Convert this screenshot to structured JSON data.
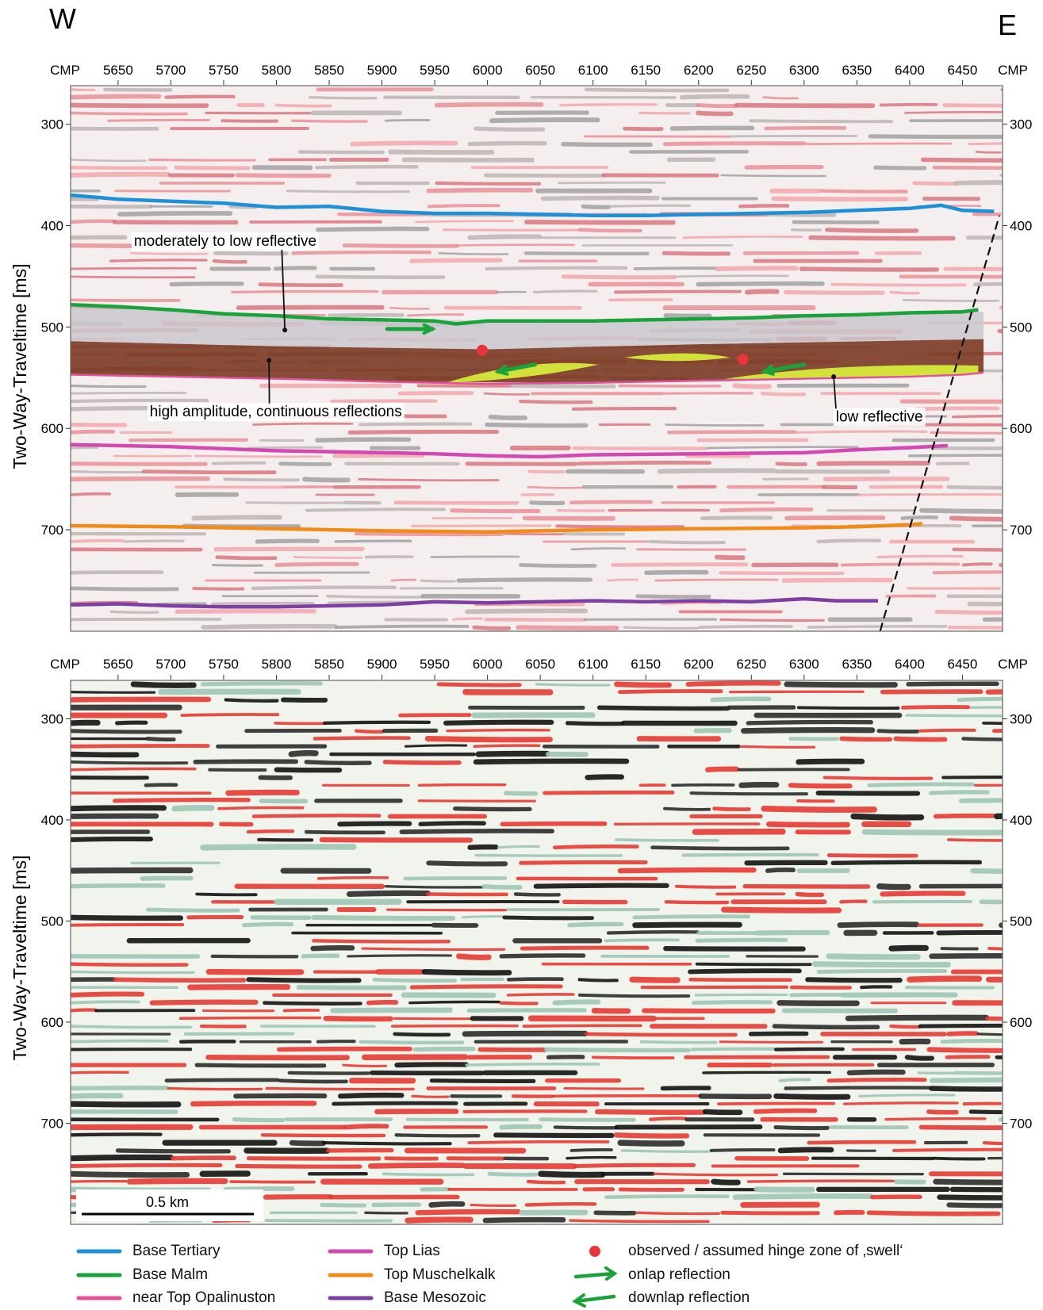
{
  "directions": {
    "west": "W",
    "east": "E"
  },
  "cmp_axis": {
    "end_label": "CMP",
    "ticks": [
      5650,
      5700,
      5750,
      5800,
      5850,
      5900,
      5950,
      6000,
      6050,
      6100,
      6150,
      6200,
      6250,
      6300,
      6350,
      6400,
      6450
    ],
    "range": [
      5605,
      6488
    ]
  },
  "time_axis": {
    "label": "Two-Way-Traveltime [ms]",
    "ticks": [
      300,
      400,
      500,
      600,
      700
    ],
    "range_ms": [
      262,
      800
    ]
  },
  "upper_panel": {
    "horizons": [
      {
        "key": "base_tertiary",
        "color": "#1e90d8",
        "points": [
          [
            5605,
            370
          ],
          [
            5650,
            374
          ],
          [
            5700,
            376
          ],
          [
            5750,
            378
          ],
          [
            5800,
            382
          ],
          [
            5850,
            381
          ],
          [
            5900,
            386
          ],
          [
            5950,
            388
          ],
          [
            6000,
            388
          ],
          [
            6050,
            389
          ],
          [
            6100,
            390
          ],
          [
            6150,
            390
          ],
          [
            6200,
            389
          ],
          [
            6250,
            388
          ],
          [
            6300,
            387
          ],
          [
            6350,
            385
          ],
          [
            6400,
            383
          ],
          [
            6430,
            380
          ],
          [
            6450,
            385
          ],
          [
            6480,
            386
          ]
        ]
      },
      {
        "key": "base_malm",
        "color": "#1aa33a",
        "points": [
          [
            5605,
            478
          ],
          [
            5650,
            480
          ],
          [
            5700,
            483
          ],
          [
            5750,
            487
          ],
          [
            5800,
            489
          ],
          [
            5850,
            492
          ],
          [
            5900,
            493
          ],
          [
            5950,
            494
          ],
          [
            5970,
            497
          ],
          [
            6000,
            494
          ],
          [
            6050,
            494
          ],
          [
            6100,
            494
          ],
          [
            6150,
            493
          ],
          [
            6200,
            492
          ],
          [
            6250,
            491
          ],
          [
            6300,
            489
          ],
          [
            6350,
            488
          ],
          [
            6400,
            486
          ],
          [
            6450,
            485
          ],
          [
            6465,
            483
          ]
        ]
      },
      {
        "key": "near_top_opalinuston",
        "color": "#e0529a",
        "points": [
          [
            5605,
            547
          ],
          [
            5700,
            549
          ],
          [
            5800,
            551
          ],
          [
            5900,
            554
          ],
          [
            6000,
            556
          ],
          [
            6100,
            555
          ],
          [
            6200,
            553
          ],
          [
            6300,
            551
          ],
          [
            6400,
            549
          ],
          [
            6450,
            547
          ],
          [
            6470,
            545
          ]
        ]
      },
      {
        "key": "top_lias",
        "color": "#d448b2",
        "points": [
          [
            5605,
            616
          ],
          [
            5700,
            618
          ],
          [
            5800,
            622
          ],
          [
            5900,
            624
          ],
          [
            5950,
            625
          ],
          [
            6000,
            627
          ],
          [
            6050,
            628
          ],
          [
            6100,
            626
          ],
          [
            6200,
            625
          ],
          [
            6300,
            624
          ],
          [
            6350,
            621
          ],
          [
            6400,
            619
          ],
          [
            6436,
            617
          ]
        ]
      },
      {
        "key": "top_muschelkalk",
        "color": "#f28a1a",
        "points": [
          [
            5605,
            696
          ],
          [
            5700,
            697
          ],
          [
            5800,
            699
          ],
          [
            5900,
            701
          ],
          [
            6000,
            702
          ],
          [
            6100,
            700
          ],
          [
            6200,
            699
          ],
          [
            6300,
            698
          ],
          [
            6350,
            697
          ],
          [
            6400,
            695
          ],
          [
            6412,
            694
          ]
        ]
      },
      {
        "key": "base_mesozoic",
        "color": "#7d3fa3",
        "points": [
          [
            5605,
            774
          ],
          [
            5650,
            773
          ],
          [
            5700,
            775
          ],
          [
            5750,
            776
          ],
          [
            5800,
            776
          ],
          [
            5850,
            775
          ],
          [
            5900,
            774
          ],
          [
            5950,
            771
          ],
          [
            6000,
            772
          ],
          [
            6050,
            771
          ],
          [
            6100,
            770
          ],
          [
            6150,
            771
          ],
          [
            6200,
            770
          ],
          [
            6250,
            771
          ],
          [
            6300,
            768
          ],
          [
            6330,
            770
          ],
          [
            6370,
            770
          ]
        ]
      }
    ],
    "fault": {
      "color": "#111111",
      "points": [
        [
          6372,
          800
        ],
        [
          6485,
          390
        ]
      ]
    },
    "hinge_points": [
      {
        "cmp": 5995,
        "ms": 523
      },
      {
        "cmp": 6242,
        "ms": 532
      }
    ],
    "onlap_arrow": {
      "from": [
        5905,
        502
      ],
      "to": [
        5948,
        502
      ]
    },
    "downlap_arrows": [
      {
        "from": [
          6045,
          537
        ],
        "to": [
          6010,
          544
        ]
      },
      {
        "from": [
          6300,
          537
        ],
        "to": [
          6262,
          544
        ]
      }
    ],
    "annotations": [
      {
        "key": "moderately",
        "text": "moderately to low reflective",
        "label_at": [
          5665,
          420
        ],
        "leader_to": [
          5808,
          503
        ]
      },
      {
        "key": "high_amp",
        "text": "high amplitude, continuous reflections",
        "label_at": [
          5680,
          588
        ],
        "leader_to": [
          5793,
          533
        ]
      },
      {
        "key": "low_refl",
        "text": "low reflective",
        "label_at": [
          6330,
          593
        ],
        "leader_to": [
          6328,
          549
        ]
      }
    ]
  },
  "scale_bar": {
    "label": "0.5 km"
  },
  "legend": {
    "items": [
      {
        "key": "base_tertiary",
        "label": "Base Tertiary",
        "color": "#1e90d8",
        "kind": "line"
      },
      {
        "key": "base_malm",
        "label": "Base Malm",
        "color": "#1aa33a",
        "kind": "line"
      },
      {
        "key": "near_top_opalinuston",
        "label": "near Top Opalinuston",
        "color": "#e0529a",
        "kind": "line"
      },
      {
        "key": "top_lias",
        "label": "Top Lias",
        "color": "#d448b2",
        "kind": "line"
      },
      {
        "key": "top_muschelkalk",
        "label": "Top Muschelkalk",
        "color": "#f28a1a",
        "kind": "line"
      },
      {
        "key": "base_mesozoic",
        "label": "Base Mesozoic",
        "color": "#7d3fa3",
        "kind": "line"
      },
      {
        "key": "hinge",
        "label": "observed / assumed hinge zone of ‚swell‘",
        "color": "#e8343a",
        "kind": "dot"
      },
      {
        "key": "onlap",
        "label": "onlap reflection",
        "color": "#1aa33a",
        "kind": "arrow-right"
      },
      {
        "key": "downlap",
        "label": "downlap reflection",
        "color": "#1aa33a",
        "kind": "arrow-left"
      }
    ]
  }
}
